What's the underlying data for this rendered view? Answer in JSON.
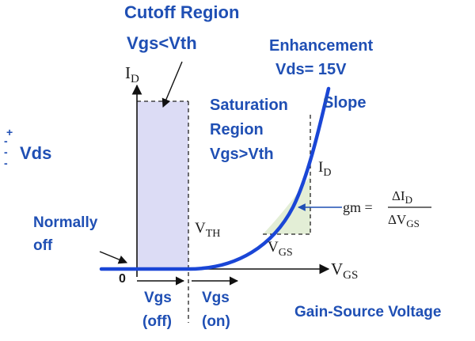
{
  "labels": {
    "cutoff_region": "Cutoff Region",
    "cutoff_condition": "Vgs<Vth",
    "enhancement": "Enhancement",
    "vds_value": "Vds= 15V",
    "slope": "Slope",
    "saturation_line1": "Saturation",
    "saturation_line2": "Region",
    "saturation_condition": "Vgs>Vth",
    "vds": "Vds",
    "vds_plus": "+",
    "vds_minus": "-",
    "normally_line1": "Normally",
    "normally_line2": "off",
    "origin": "0",
    "vgs_off_line1": "Vgs",
    "vgs_off_line2": "(off)",
    "vgs_on_line1": "Vgs",
    "vgs_on_line2": "(on)",
    "gain_source": "Gain-Source Voltage"
  },
  "axes": {
    "y_main": "I",
    "y_sub": "D",
    "x_main": "V",
    "x_sub": "GS"
  },
  "annotations": {
    "vth_main": "V",
    "vth_sub": "TH",
    "delta_id_main": "I",
    "delta_id_sub": "D",
    "delta_vgs_main": "V",
    "delta_vgs_sub": "GS",
    "gm_label": "gm =",
    "gm_num_delta": "ΔI",
    "gm_num_sub": "D",
    "gm_den_delta": "ΔV",
    "gm_den_sub": "GS"
  },
  "colors": {
    "accent_blue": "#1f4fb4",
    "curve_blue": "#1a46d6",
    "cutoff_fill": "#dcdcf5",
    "triangle_fill": "#e3eed6"
  }
}
